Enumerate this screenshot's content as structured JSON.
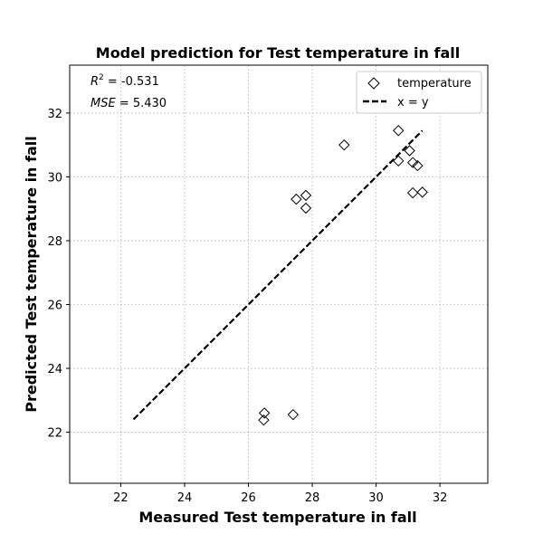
{
  "chart_data": {
    "type": "scatter",
    "title": "Model prediction for Test temperature in fall",
    "xlabel": "Measured Test temperature in fall",
    "ylabel": "Predicted Test temperature in fall",
    "xlim": [
      20.4,
      33.5
    ],
    "ylim": [
      20.4,
      33.5
    ],
    "xticks": [
      22,
      24,
      26,
      28,
      30,
      32
    ],
    "yticks": [
      22,
      24,
      26,
      28,
      30,
      32
    ],
    "grid": true,
    "legend_position": "top-right",
    "annotations": {
      "r2_label": "R",
      "r2_sup": "2",
      "r2_value": " = -0.531",
      "mse_label": "MSE",
      "mse_value": " = 5.430"
    },
    "series": [
      {
        "name": "temperature",
        "marker": "diamond",
        "points": [
          [
            26.5,
            22.6
          ],
          [
            26.48,
            22.38
          ],
          [
            27.4,
            22.55
          ],
          [
            27.5,
            29.3
          ],
          [
            27.8,
            29.42
          ],
          [
            27.8,
            29.02
          ],
          [
            29.0,
            31.0
          ],
          [
            30.7,
            31.45
          ],
          [
            30.7,
            30.5
          ],
          [
            31.05,
            30.82
          ],
          [
            31.15,
            30.45
          ],
          [
            31.3,
            30.35
          ],
          [
            31.15,
            29.5
          ],
          [
            31.45,
            29.52
          ]
        ]
      },
      {
        "name": "x = y",
        "line_style": "dashed",
        "x": [
          22.4,
          31.45
        ],
        "y": [
          22.4,
          31.45
        ]
      }
    ],
    "colors": {
      "marker_edge": "#000000",
      "line": "#000000",
      "grid": "#b0b0b0"
    }
  }
}
